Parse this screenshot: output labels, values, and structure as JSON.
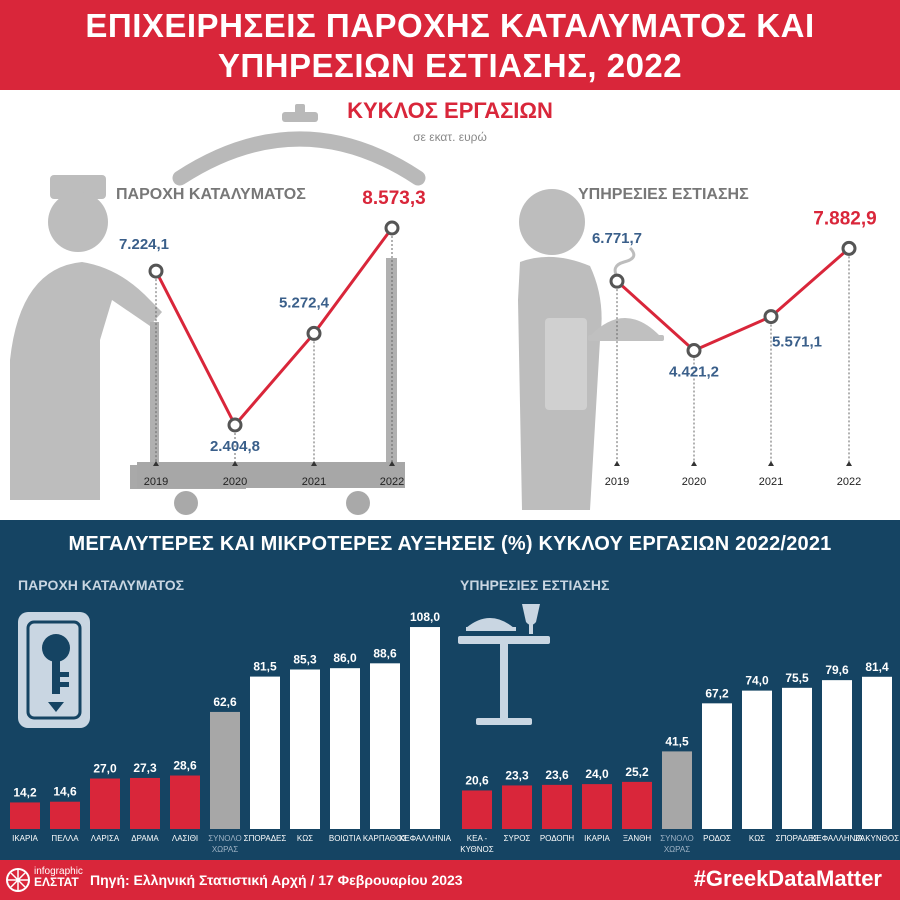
{
  "header": {
    "title_line1": "ΕΠΙΧΕΙΡΗΣΕΙΣ ΠΑΡΟΧΗΣ ΚΑΤΑΛΥΜΑΤΟΣ ΚΑΙ",
    "title_line2": "ΥΠΗΡΕΣΙΩΝ ΕΣΤΙΑΣΗΣ, 2022"
  },
  "top": {
    "title": "ΚΥΚΛΟΣ ΕΡΓΑΣΙΩΝ",
    "subtitle": "σε εκατ. ευρώ"
  },
  "bottom": {
    "title": "ΜΕΓΑΛΥΤΕΡΕΣ ΚΑΙ ΜΙΚΡΟΤΕΡΕΣ ΑΥΞΗΣΕΙΣ (%) ΚΥΚΛΟΥ ΕΡΓΑΣΙΩΝ 2022/2021"
  },
  "footer": {
    "source": "Πηγή: Ελληνική Στατιστική Αρχή  / 17 Φεβρουαρίου 2023",
    "hashtag": "#GreekDataMatter",
    "logo_line1": "infographic",
    "logo_line2": "ΕΛΣΤΑΤ"
  },
  "colors": {
    "red": "#d9263a",
    "navy": "#154463",
    "blue_label": "#3a5f8a",
    "gray": "#a7a7a7",
    "white": "#ffffff"
  },
  "icons": [
    "bellboy-icon",
    "waiter-icon",
    "key-card-icon",
    "restaurant-table-icon",
    "elstat-logo-icon"
  ],
  "chart_data": [
    {
      "type": "line",
      "title": "ΠΑΡΟΧΗ ΚΑΤΑΛΥΜΑΤΟΣ",
      "x": [
        "2019",
        "2020",
        "2021",
        "2022"
      ],
      "values": [
        7224.1,
        2404.8,
        5272.4,
        8573.3
      ],
      "labels": [
        "7.224,1",
        "2.404,8",
        "5.272,4",
        "8.573,3"
      ],
      "ylabel": "σε εκατ. ευρώ"
    },
    {
      "type": "line",
      "title": "ΥΠΗΡΕΣΙΕΣ ΕΣΤΙΑΣΗΣ",
      "x": [
        "2019",
        "2020",
        "2021",
        "2022"
      ],
      "values": [
        6771.7,
        4421.2,
        5571.1,
        7882.9
      ],
      "labels": [
        "6.771,7",
        "4.421,2",
        "5.571,1",
        "7.882,9"
      ],
      "ylabel": "σε εκατ. ευρώ"
    },
    {
      "type": "bar",
      "title": "ΠΑΡΟΧΗ ΚΑΤΑΛΥΜΑΤΟΣ",
      "categories": [
        [
          "ΙΚΑΡΙΑ"
        ],
        [
          "ΠΕΛΛΑ"
        ],
        [
          "ΛΑΡΙΣΑ"
        ],
        [
          "ΔΡΑΜΑ"
        ],
        [
          "ΛΑΣΙΘΙ"
        ],
        [
          "ΣΥΝΟΛΟ",
          "ΧΩΡΑΣ"
        ],
        [
          "ΣΠΟΡΑΔΕΣ"
        ],
        [
          "ΚΩΣ"
        ],
        [
          "ΒΟΙΩΤΙΑ"
        ],
        [
          "ΚΑΡΠΑΘΟΣ"
        ],
        [
          "ΚΕΦΑΛΛΗΝΙΑ"
        ]
      ],
      "values": [
        14.2,
        14.6,
        27.0,
        27.3,
        28.6,
        62.6,
        81.5,
        85.3,
        86.0,
        88.6,
        108.0
      ],
      "labels": [
        "14,2",
        "14,6",
        "27,0",
        "27,3",
        "28,6",
        "62,6",
        "81,5",
        "85,3",
        "86,0",
        "88,6",
        "108,0"
      ],
      "groups": [
        "min",
        "min",
        "min",
        "min",
        "min",
        "total",
        "max",
        "max",
        "max",
        "max",
        "max"
      ]
    },
    {
      "type": "bar",
      "title": "ΥΠΗΡΕΣΙΕΣ ΕΣΤΙΑΣΗΣ",
      "categories": [
        [
          "ΚΕΑ -",
          "ΚΥΘΝΟΣ"
        ],
        [
          "ΣΥΡΟΣ"
        ],
        [
          "ΡΟΔΟΠΗ"
        ],
        [
          "ΙΚΑΡΙΑ"
        ],
        [
          "ΞΑΝΘΗ"
        ],
        [
          "ΣΥΝΟΛΟ",
          "ΧΩΡΑΣ"
        ],
        [
          "ΡΟΔΟΣ"
        ],
        [
          "ΚΩΣ"
        ],
        [
          "ΣΠΟΡΑΔΕΣ"
        ],
        [
          "ΚΕΦΑΛΛΗΝΙΑ"
        ],
        [
          "ΖΑΚΥΝΘΟΣ"
        ]
      ],
      "values": [
        20.6,
        23.3,
        23.6,
        24.0,
        25.2,
        41.5,
        67.2,
        74.0,
        75.5,
        79.6,
        81.4
      ],
      "labels": [
        "20,6",
        "23,3",
        "23,6",
        "24,0",
        "25,2",
        "41,5",
        "67,2",
        "74,0",
        "75,5",
        "79,6",
        "81,4"
      ],
      "groups": [
        "min",
        "min",
        "min",
        "min",
        "min",
        "total",
        "max",
        "max",
        "max",
        "max",
        "max"
      ]
    }
  ]
}
